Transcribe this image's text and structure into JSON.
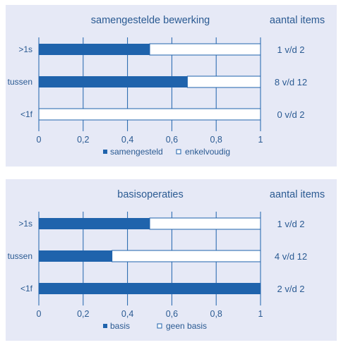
{
  "colors": {
    "panel_bg": "#e6e9f6",
    "text": "#2a5a92",
    "bar_fill": "#1f63ac",
    "bar_rest": "#ffffff",
    "gridline": "#1f63ac"
  },
  "items_header": "aantal items",
  "chart_data": [
    {
      "type": "bar",
      "orientation": "horizontal",
      "stacked": true,
      "title": "samengestelde bewerking",
      "categories": [
        ">1s",
        "tussen",
        "<1f"
      ],
      "series": [
        {
          "name": "samengesteld",
          "values": [
            0.5,
            0.67,
            0.0
          ]
        },
        {
          "name": "enkelvoudig",
          "values": [
            0.5,
            0.33,
            1.0
          ]
        }
      ],
      "xlim": [
        0,
        1
      ],
      "xticks": [
        "0",
        "0,2",
        "0,4",
        "0,6",
        "0,8",
        "1"
      ],
      "item_counts": [
        "1 v/d 2",
        "8 v/d 12",
        "0 v/d 2"
      ],
      "grid": true,
      "legend": "bottom"
    },
    {
      "type": "bar",
      "orientation": "horizontal",
      "stacked": true,
      "title": "basisoperaties",
      "categories": [
        ">1s",
        "tussen",
        "<1f"
      ],
      "series": [
        {
          "name": "basis",
          "values": [
            0.5,
            0.33,
            1.0
          ]
        },
        {
          "name": "geen basis",
          "values": [
            0.5,
            0.67,
            0.0
          ]
        }
      ],
      "xlim": [
        0,
        1
      ],
      "xticks": [
        "0",
        "0,2",
        "0,4",
        "0,6",
        "0,8",
        "1"
      ],
      "item_counts": [
        "1 v/d 2",
        "4 v/d 12",
        "2 v/d 2"
      ],
      "grid": true,
      "legend": "bottom"
    }
  ]
}
